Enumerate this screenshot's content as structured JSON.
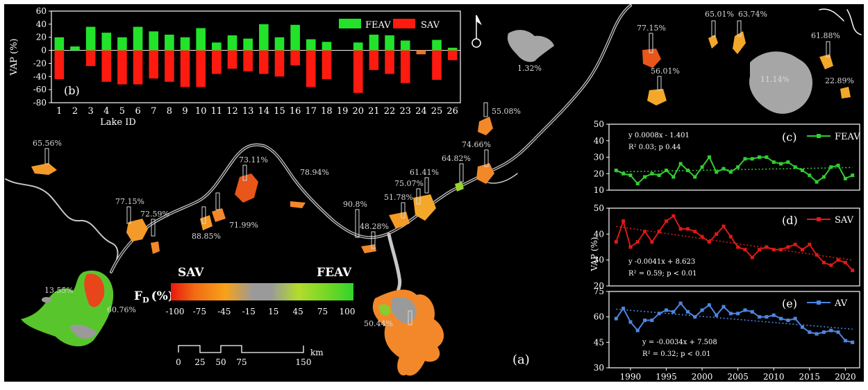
{
  "figure": {
    "panel_a_label": "(a)"
  },
  "lake_labels": [
    "65.56%",
    "77.15%",
    "72.59%",
    "88.85%",
    "71.99%",
    "73.11%",
    "78.94%",
    "90.8%",
    "48.28%",
    "51.78%",
    "75.07%",
    "61.41%",
    "64.82%",
    "74.66%",
    "55.08%",
    "13.55%",
    "60.76%",
    "50.44%",
    "1.32%",
    "77.15%",
    "56.01%",
    "65.01%",
    "63.74%",
    "61.88%",
    "11.14%",
    "22.89%"
  ],
  "legend_fd": {
    "left_title": "SAV",
    "right_title": "FEAV",
    "axis_title": "F",
    "axis_title_sub": "D",
    "axis_title_unit": "(%)",
    "ticks": [
      "-100",
      "-75",
      "-45",
      "-15",
      "15",
      "45",
      "75",
      "100"
    ],
    "gradient_colors": [
      "#e8170f",
      "#f26b12",
      "#f7a21a",
      "#9a9a9a",
      "#9a9a9a",
      "#b3dc2a",
      "#6fd626",
      "#2fd42d"
    ]
  },
  "scale_bar": {
    "ticks": [
      "0",
      "25",
      "50",
      "75",
      "150"
    ],
    "unit": "km"
  },
  "north_arrow": {
    "icon": "north-arrow-icon"
  },
  "colors": {
    "feav": "#22e32a",
    "sav": "#ff1a10",
    "av": "#4d86e0",
    "river": "#c8c8c8",
    "background": "#000000"
  },
  "chart_data": [
    {
      "type": "bar",
      "panel_label": "(b)",
      "xlabel": "Lake ID",
      "ylabel": "VAP (%)",
      "ylim": [
        -80,
        60
      ],
      "yticks": [
        -80,
        -60,
        -40,
        -20,
        0,
        20,
        40,
        60
      ],
      "categories": [
        "1",
        "2",
        "3",
        "4",
        "5",
        "6",
        "7",
        "8",
        "9",
        "10",
        "11",
        "12",
        "13",
        "14",
        "15",
        "16",
        "17",
        "18",
        "19",
        "20",
        "21",
        "22",
        "23",
        "24",
        "25",
        "26"
      ],
      "legend": "top-right",
      "series": [
        {
          "name": "FEAV",
          "values": [
            20,
            6,
            36,
            27,
            20,
            36,
            29,
            24,
            20,
            34,
            12,
            23,
            18,
            40,
            20,
            39,
            17,
            13,
            0,
            12,
            24,
            23,
            15,
            0,
            16,
            4
          ]
        },
        {
          "name": "SAV",
          "values": [
            -44,
            0,
            -24,
            -48,
            -52,
            -52,
            -43,
            -48,
            -56,
            -56,
            -36,
            -28,
            -32,
            -36,
            -40,
            -23,
            -56,
            -44,
            0,
            -65,
            -30,
            -36,
            -50,
            -6,
            -45,
            -15
          ]
        }
      ]
    },
    {
      "type": "line",
      "panel_label": "(c)",
      "ylim": [
        10,
        50
      ],
      "yticks": [
        10,
        20,
        30,
        40,
        50
      ],
      "equation": "y   0.0008x - 1.401",
      "r2": "R²   0.03; p   0.44",
      "series": [
        {
          "name": "FEAV",
          "x": [
            1988,
            1989,
            1990,
            1991,
            1992,
            1993,
            1994,
            1995,
            1996,
            1997,
            1998,
            1999,
            2000,
            2001,
            2002,
            2003,
            2004,
            2005,
            2006,
            2007,
            2008,
            2009,
            2010,
            2011,
            2012,
            2013,
            2014,
            2015,
            2016,
            2017,
            2018,
            2019,
            2020,
            2021
          ],
          "values": [
            22,
            20,
            19,
            14,
            18,
            20,
            19,
            22,
            18,
            26,
            22,
            18,
            24,
            30,
            21,
            23,
            21,
            24,
            29,
            29,
            30,
            30,
            27,
            26,
            27,
            24,
            22,
            19,
            15,
            18,
            24,
            25,
            17,
            19
          ]
        }
      ]
    },
    {
      "type": "line",
      "panel_label": "(d)",
      "ylabel": "VAP (%)",
      "ylim": [
        20,
        50
      ],
      "yticks": [
        20,
        30,
        40,
        50
      ],
      "equation": "y   -0.0041x + 8.623",
      "r2": "R² = 0.59; p < 0.01",
      "series": [
        {
          "name": "SAV",
          "x": [
            1988,
            1989,
            1990,
            1991,
            1992,
            1993,
            1994,
            1995,
            1996,
            1997,
            1998,
            1999,
            2000,
            2001,
            2002,
            2003,
            2004,
            2005,
            2006,
            2007,
            2008,
            2009,
            2010,
            2011,
            2012,
            2013,
            2014,
            2015,
            2016,
            2017,
            2018,
            2019,
            2020,
            2021
          ],
          "values": [
            37,
            45,
            35,
            37,
            41,
            37,
            41,
            45,
            47,
            42,
            42,
            41,
            39,
            37,
            40,
            43,
            39,
            35,
            34,
            31,
            34,
            35,
            34,
            34,
            35,
            36,
            34,
            36,
            32,
            29,
            28,
            30,
            29,
            26
          ]
        }
      ]
    },
    {
      "type": "line",
      "panel_label": "(e)",
      "xlabel": "",
      "ylim": [
        30,
        75
      ],
      "yticks": [
        30,
        45,
        60,
        75
      ],
      "xticks": [
        1990,
        1995,
        2000,
        2005,
        2010,
        2015,
        2020
      ],
      "equation": "y = -0.0034x + 7.508",
      "r2": "R² = 0.32; p < 0.01",
      "series": [
        {
          "name": "AV",
          "x": [
            1988,
            1989,
            1990,
            1991,
            1992,
            1993,
            1994,
            1995,
            1996,
            1997,
            1998,
            1999,
            2000,
            2001,
            2002,
            2003,
            2004,
            2005,
            2006,
            2007,
            2008,
            2009,
            2010,
            2011,
            2012,
            2013,
            2014,
            2015,
            2016,
            2017,
            2018,
            2019,
            2020,
            2021
          ],
          "values": [
            59,
            65,
            57,
            52,
            58,
            58,
            62,
            64,
            63,
            68,
            63,
            60,
            64,
            67,
            61,
            66,
            62,
            62,
            64,
            63,
            60,
            60,
            61,
            59,
            58,
            59,
            54,
            51,
            50,
            51,
            52,
            51,
            46,
            45
          ]
        }
      ]
    }
  ]
}
